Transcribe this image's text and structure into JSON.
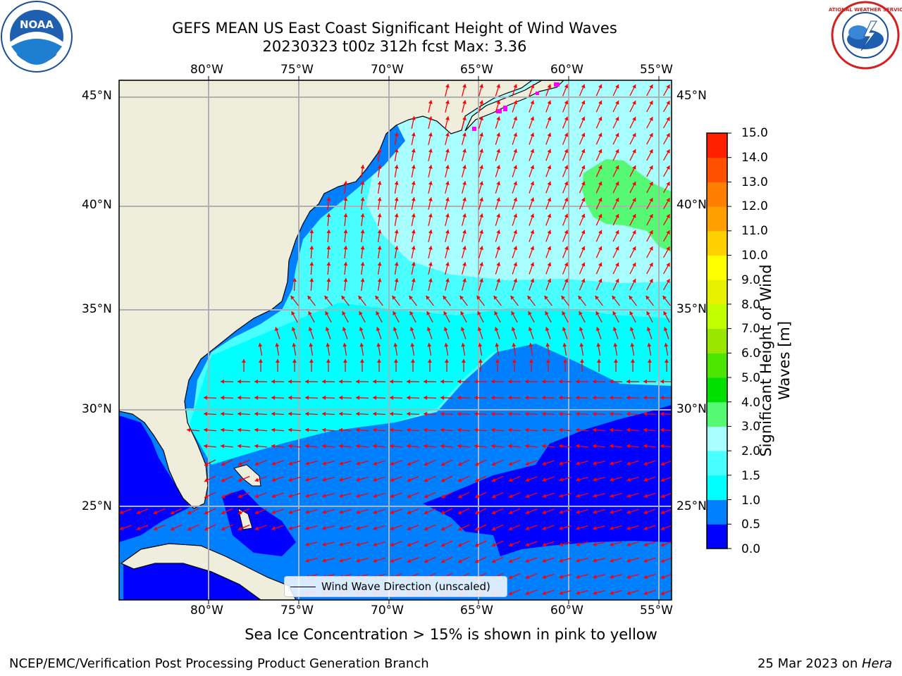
{
  "header": {
    "title_line1": "GEFS MEAN US East Coast Significant Height of Wind Waves",
    "title_line2": "20230323 t00z 312h fcst   Max: 3.36"
  },
  "logos": {
    "left_text": "NOAA",
    "right_text": "NATIONAL WEATHER SERVICE"
  },
  "map": {
    "lon_labels": [
      "80°W",
      "75°W",
      "70°W",
      "65°W",
      "60°W",
      "55°W"
    ],
    "lat_labels": [
      "45°N",
      "40°N",
      "35°N",
      "30°N",
      "25°N"
    ],
    "lon_range": [
      -85,
      -54.5
    ],
    "lat_range": [
      20.5,
      45.8
    ],
    "land_color": "#efeddc",
    "ocean_color": "#00ffff",
    "arrow_color": "#ff0000",
    "grid_color": "#b0b0b0"
  },
  "colorbar": {
    "label": "Significant Height of Wind Waves [m]",
    "ticks": [
      "15.0",
      "14.0",
      "13.0",
      "12.0",
      "11.0",
      "10.0",
      "9.0",
      "8.0",
      "7.0",
      "6.0",
      "5.0",
      "4.0",
      "3.0",
      "2.0",
      "1.5",
      "1.0",
      "0.5",
      "0.0"
    ],
    "colors": [
      "#0000ff",
      "#0080ff",
      "#00ffff",
      "#48fefe",
      "#a8fefe",
      "#55f973",
      "#00e000",
      "#4ce600",
      "#99e600",
      "#c0ff00",
      "#e6f000",
      "#ffff00",
      "#ffd000",
      "#ffa000",
      "#ff8000",
      "#ff5000",
      "#ff2000"
    ]
  },
  "legend": {
    "label": "Wind Wave Direction (unscaled)"
  },
  "subtitle": "Sea Ice Concentration > 15% is shown in pink to yellow",
  "footer": {
    "left": "NCEP/EMC/Verification Post Processing Product Generation Branch",
    "date": "25 Mar 2023 on ",
    "machine": "Hera"
  }
}
